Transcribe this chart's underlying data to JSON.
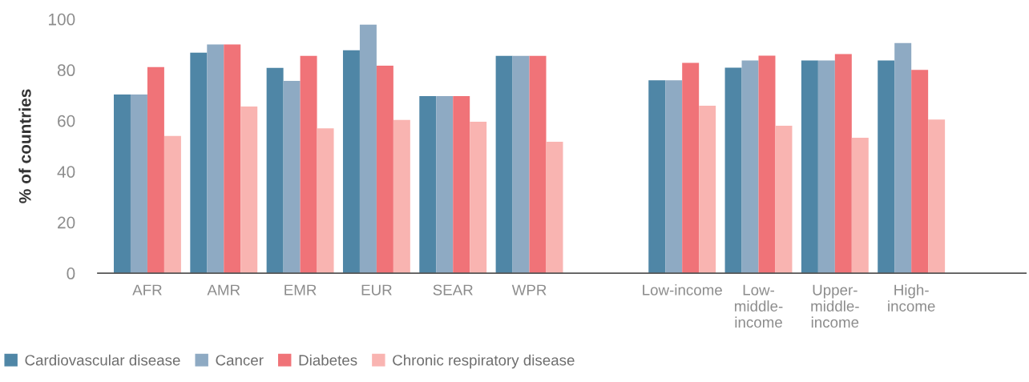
{
  "chart_data": {
    "type": "bar",
    "ylabel": "% of countries",
    "categories": [
      "AFR",
      "AMR",
      "EMR",
      "EUR",
      "SEAR",
      "WPR",
      null,
      "Low-income",
      "Low-\nmiddle-\nincome",
      "Upper-\nmiddle-\nincome",
      "High-\nincome"
    ],
    "series": [
      {
        "name": "Cardiovascular disease",
        "color": "#4f86a6",
        "values": [
          70.3,
          86.8,
          80.8,
          87.7,
          69.7,
          85.5,
          null,
          75.9,
          80.9,
          83.7,
          83.7
        ]
      },
      {
        "name": "Cancer",
        "color": "#8eaac3",
        "values": [
          70.3,
          90,
          75.7,
          97.8,
          69.7,
          85.5,
          null,
          75.9,
          83.7,
          83.7,
          90.6
        ]
      },
      {
        "name": "Diabetes",
        "color": "#f07378",
        "values": [
          81.1,
          90,
          85.5,
          81.7,
          69.7,
          85.5,
          null,
          82.8,
          85.6,
          86.2,
          80
        ]
      },
      {
        "name": "Chronic respiratory disease",
        "color": "#f9b4b1",
        "values": [
          54,
          65.6,
          57,
          60.3,
          59.6,
          51.7,
          null,
          65.9,
          58,
          53.3,
          60.5
        ]
      }
    ],
    "ylim": [
      0,
      100
    ],
    "yticks": [
      0,
      20,
      40,
      60,
      80,
      100
    ],
    "grid": false,
    "legend": "bottom left"
  }
}
